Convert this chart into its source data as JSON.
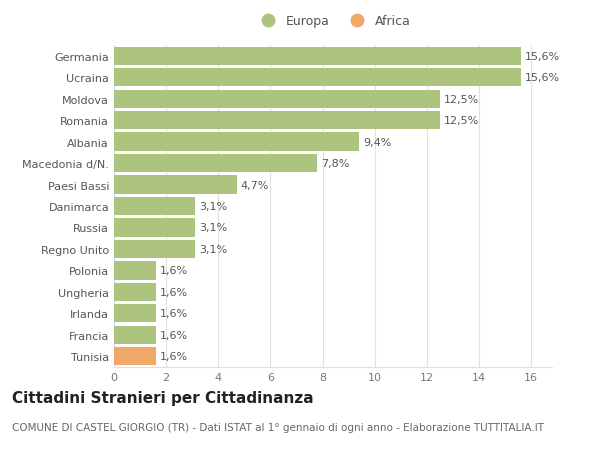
{
  "categories": [
    "Tunisia",
    "Francia",
    "Irlanda",
    "Ungheria",
    "Polonia",
    "Regno Unito",
    "Russia",
    "Danimarca",
    "Paesi Bassi",
    "Macedonia d/N.",
    "Albania",
    "Romania",
    "Moldova",
    "Ucraina",
    "Germania"
  ],
  "values": [
    1.6,
    1.6,
    1.6,
    1.6,
    1.6,
    3.1,
    3.1,
    3.1,
    4.7,
    7.8,
    9.4,
    12.5,
    12.5,
    15.6,
    15.6
  ],
  "labels": [
    "1,6%",
    "1,6%",
    "1,6%",
    "1,6%",
    "1,6%",
    "3,1%",
    "3,1%",
    "3,1%",
    "4,7%",
    "7,8%",
    "9,4%",
    "12,5%",
    "12,5%",
    "15,6%",
    "15,6%"
  ],
  "colors": [
    "#f0a868",
    "#adc47e",
    "#adc47e",
    "#adc47e",
    "#adc47e",
    "#adc47e",
    "#adc47e",
    "#adc47e",
    "#adc47e",
    "#adc47e",
    "#adc47e",
    "#adc47e",
    "#adc47e",
    "#adc47e",
    "#adc47e"
  ],
  "europa_color": "#adc47e",
  "africa_color": "#f0a868",
  "background_color": "#ffffff",
  "grid_color": "#e0e0e0",
  "title": "Cittadini Stranieri per Cittadinanza",
  "subtitle": "COMUNE DI CASTEL GIORGIO (TR) - Dati ISTAT al 1° gennaio di ogni anno - Elaborazione TUTTITALIA.IT",
  "xlim": [
    0,
    16.8
  ],
  "xticks": [
    0,
    2,
    4,
    6,
    8,
    10,
    12,
    14,
    16
  ],
  "bar_height": 0.85,
  "label_fontsize": 8,
  "title_fontsize": 11,
  "subtitle_fontsize": 7.5,
  "tick_fontsize": 8,
  "legend_fontsize": 9
}
